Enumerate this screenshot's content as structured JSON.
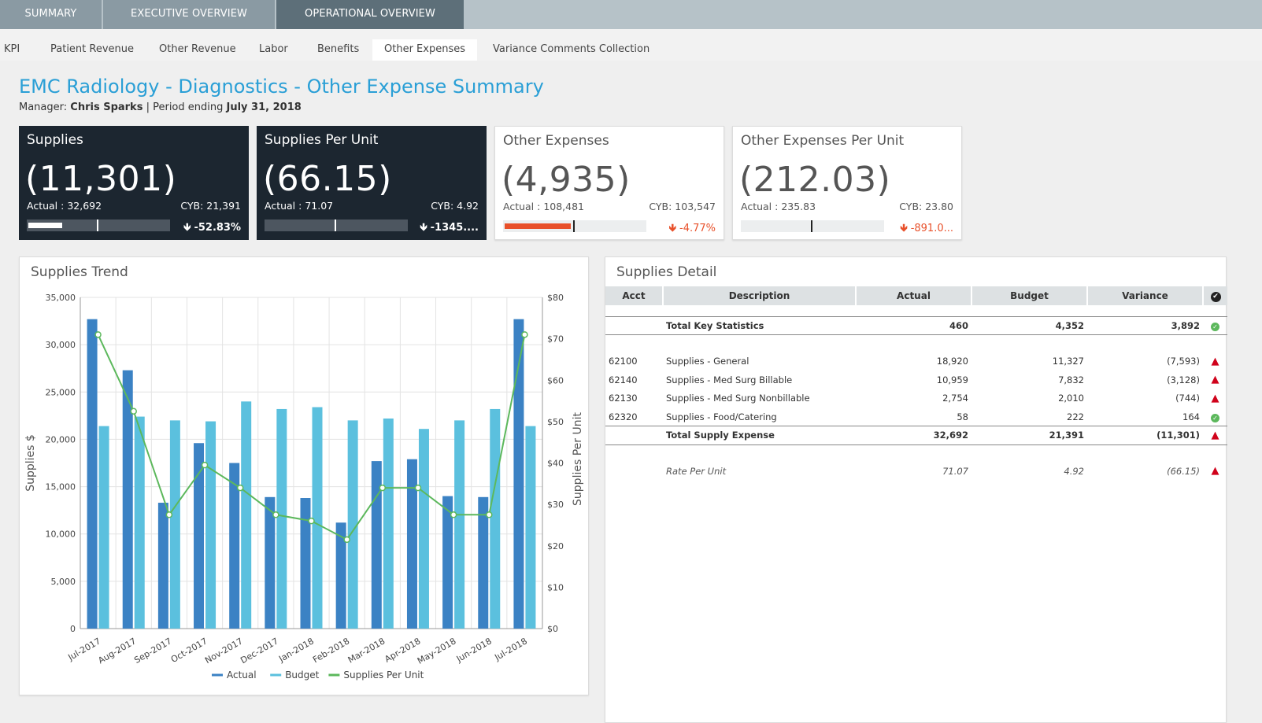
{
  "top_tabs": [
    {
      "label": "SUMMARY"
    },
    {
      "label": "EXECUTIVE OVERVIEW"
    },
    {
      "label": "OPERATIONAL OVERVIEW"
    }
  ],
  "sub_tabs": [
    {
      "label": "KPI"
    },
    {
      "label": "Patient Revenue"
    },
    {
      "label": "Other Revenue"
    },
    {
      "label": "Labor"
    },
    {
      "label": "Benefits"
    },
    {
      "label": "Other Expenses"
    },
    {
      "label": "Variance Comments Collection"
    }
  ],
  "header": {
    "title": "EMC Radiology - Diagnostics - Other Expense Summary",
    "manager_prefix": "Manager: ",
    "manager_name": "Chris Sparks",
    "period_prefix": " | Period ending ",
    "period_date": "July 31, 2018"
  },
  "kpis": [
    {
      "title": "Supplies",
      "value": "(11,301)",
      "actual": "Actual : 32,692",
      "cyb": "CYB: 21,391",
      "variance": "-52.83%",
      "arrow": "🡻",
      "bar_fill": 0.24,
      "marker": 0.49,
      "theme": "dark"
    },
    {
      "title": "Supplies Per Unit",
      "value": "(66.15)",
      "actual": "Actual : 71.07",
      "cyb": "CYB: 4.92",
      "variance": "-1345....",
      "arrow": "🡻",
      "bar_fill": 0.0,
      "marker": 0.49,
      "theme": "dark"
    },
    {
      "title": "Other Expenses",
      "value": "(4,935)",
      "actual": "Actual : 108,481",
      "cyb": "CYB: 103,547",
      "variance": "-4.77%",
      "arrow": "🡻",
      "bar_fill": 0.47,
      "marker": 0.49,
      "theme": "light"
    },
    {
      "title": "Other Expenses Per Unit",
      "value": "(212.03)",
      "actual": "Actual : 235.83",
      "cyb": "CYB: 23.80",
      "variance": "-891.0...",
      "arrow": "🡻",
      "bar_fill": 0.0,
      "marker": 0.49,
      "theme": "light"
    }
  ],
  "trend_panel": {
    "title": "Supplies Trend"
  },
  "detail_panel": {
    "title": "Supplies Detail",
    "columns": [
      "Acct",
      "Description",
      "Actual",
      "Budget",
      "Variance",
      "✔"
    ],
    "rows": [
      {
        "acct": "",
        "desc": "Total Key Statistics",
        "actual": "460",
        "budget": "4,352",
        "variance": "3,892",
        "status": "ok",
        "style": "bold"
      },
      {
        "acct": "62100",
        "desc": "Supplies - General",
        "actual": "18,920",
        "budget": "11,327",
        "variance": "(7,593)",
        "status": "warn",
        "style": ""
      },
      {
        "acct": "62140",
        "desc": "Supplies - Med Surg Billable",
        "actual": "10,959",
        "budget": "7,832",
        "variance": "(3,128)",
        "status": "warn",
        "style": ""
      },
      {
        "acct": "62130",
        "desc": "Supplies - Med Surg Nonbillable",
        "actual": "2,754",
        "budget": "2,010",
        "variance": "(744)",
        "status": "warn",
        "style": ""
      },
      {
        "acct": "62320",
        "desc": "Supplies - Food/Catering",
        "actual": "58",
        "budget": "222",
        "variance": "164",
        "status": "ok",
        "style": ""
      },
      {
        "acct": "",
        "desc": "Total Supply Expense",
        "actual": "32,692",
        "budget": "21,391",
        "variance": "(11,301)",
        "status": "warn",
        "style": "bold"
      },
      {
        "acct": "",
        "desc": "Rate Per Unit",
        "actual": "71.07",
        "budget": "4.92",
        "variance": "(66.15)",
        "status": "warn",
        "style": "ital"
      }
    ]
  },
  "colors": {
    "actual": "#3b82c4",
    "budget": "#5bc0de",
    "per_unit": "#5cb85c",
    "title": "#2a9fd6",
    "negative": "#e8502a",
    "ok": "#5cb85c",
    "warn": "#d0021b"
  },
  "chart_data": {
    "type": "bar",
    "categories": [
      "Jul-2017",
      "Aug-2017",
      "Sep-2017",
      "Oct-2017",
      "Nov-2017",
      "Dec-2017",
      "Jan-2018",
      "Feb-2018",
      "Mar-2018",
      "Apr-2018",
      "May-2018",
      "Jun-2018",
      "Jul-2018"
    ],
    "series": [
      {
        "name": "Actual",
        "values": [
          32700,
          27300,
          13300,
          19600,
          17500,
          13900,
          13800,
          11200,
          17700,
          17900,
          14000,
          13900,
          32700
        ],
        "axis": "left",
        "kind": "bar"
      },
      {
        "name": "Budget",
        "values": [
          21400,
          22400,
          22000,
          21900,
          24000,
          23200,
          23400,
          22000,
          22200,
          21100,
          22000,
          23200,
          21400
        ],
        "axis": "left",
        "kind": "bar"
      },
      {
        "name": "Supplies Per Unit",
        "values": [
          71.0,
          52.5,
          27.5,
          39.5,
          34.0,
          27.5,
          26.0,
          21.5,
          34.0,
          34.0,
          27.5,
          27.5,
          71.0
        ],
        "axis": "right",
        "kind": "line"
      }
    ],
    "ylabel": "Supplies $",
    "y2label": "Supplies Per Unit",
    "ylim": [
      0,
      35000
    ],
    "y2lim": [
      0,
      80
    ],
    "yticks": [
      "0",
      "5,000",
      "10,000",
      "15,000",
      "20,000",
      "25,000",
      "30,000",
      "35,000"
    ],
    "y2ticks": [
      "$0",
      "$10",
      "$20",
      "$30",
      "$40",
      "$50",
      "$60",
      "$70",
      "$80"
    ],
    "legend": "bottom",
    "grid": true
  }
}
